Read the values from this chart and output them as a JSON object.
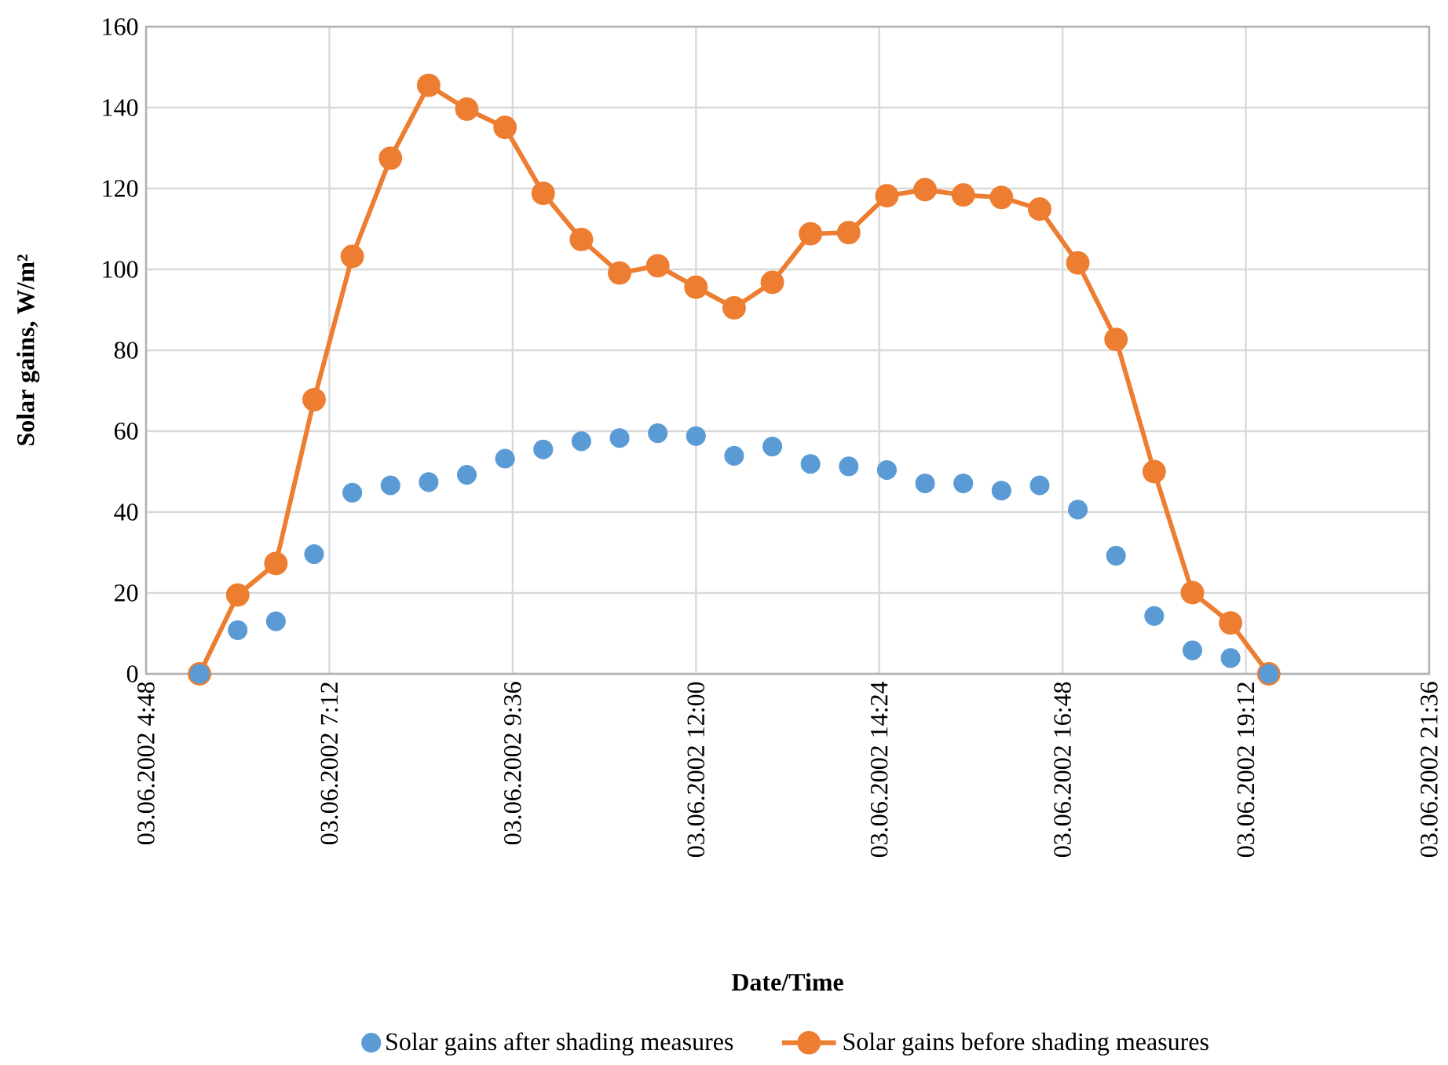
{
  "chart_data": {
    "type": "line",
    "xlabel": "Date/Time",
    "ylabel": "Solar gains, W/m²",
    "x": [
      "2002-06-03T05:30",
      "2002-06-03T06:00",
      "2002-06-03T06:30",
      "2002-06-03T07:00",
      "2002-06-03T07:30",
      "2002-06-03T08:00",
      "2002-06-03T08:30",
      "2002-06-03T09:00",
      "2002-06-03T09:30",
      "2002-06-03T10:00",
      "2002-06-03T10:30",
      "2002-06-03T11:00",
      "2002-06-03T11:30",
      "2002-06-03T12:00",
      "2002-06-03T12:30",
      "2002-06-03T13:00",
      "2002-06-03T13:30",
      "2002-06-03T14:00",
      "2002-06-03T14:30",
      "2002-06-03T15:00",
      "2002-06-03T15:30",
      "2002-06-03T16:00",
      "2002-06-03T16:30",
      "2002-06-03T17:00",
      "2002-06-03T17:30",
      "2002-06-03T18:00",
      "2002-06-03T18:30",
      "2002-06-03T19:00",
      "2002-06-03T19:30"
    ],
    "series": [
      {
        "name": "Solar gains after shading measures",
        "type": "scatter",
        "color": "#5b9bd5",
        "values": [
          0,
          10.8,
          13.0,
          29.6,
          44.8,
          46.6,
          47.4,
          49.2,
          53.2,
          55.5,
          57.5,
          58.3,
          59.5,
          58.8,
          53.9,
          56.2,
          51.9,
          51.3,
          50.4,
          47.1,
          47.1,
          45.3,
          46.6,
          40.6,
          29.2,
          14.3,
          5.8,
          3.9,
          0
        ]
      },
      {
        "name": "Solar gains before shading measures",
        "color": "#ed7d31",
        "values": [
          0,
          19.5,
          27.3,
          67.8,
          103.2,
          127.5,
          145.5,
          139.6,
          135.1,
          118.8,
          107.4,
          99.1,
          100.9,
          95.6,
          90.5,
          96.8,
          108.8,
          109.1,
          118.2,
          119.7,
          118.4,
          117.8,
          114.9,
          101.6,
          82.7,
          50.0,
          20.1,
          12.6,
          0
        ]
      }
    ],
    "xlim": [
      "2002-06-03T04:48",
      "2002-06-03T21:36"
    ],
    "xticks": [
      {
        "value": "2002-06-03T04:48",
        "label": "03.06.2002 4:48"
      },
      {
        "value": "2002-06-03T07:12",
        "label": "03.06.2002 7:12"
      },
      {
        "value": "2002-06-03T09:36",
        "label": "03.06.2002 9:36"
      },
      {
        "value": "2002-06-03T12:00",
        "label": "03.06.2002 12:00"
      },
      {
        "value": "2002-06-03T14:24",
        "label": "03.06.2002 14:24"
      },
      {
        "value": "2002-06-03T16:48",
        "label": "03.06.2002 16:48"
      },
      {
        "value": "2002-06-03T19:12",
        "label": "03.06.2002 19:12"
      },
      {
        "value": "2002-06-03T21:36",
        "label": "03.06.2002 21:36"
      }
    ],
    "ylim": [
      0,
      160
    ],
    "yticks": [
      0,
      20,
      40,
      60,
      80,
      100,
      120,
      140,
      160
    ],
    "grid": true,
    "legend": "bottom",
    "marker": "circle"
  }
}
